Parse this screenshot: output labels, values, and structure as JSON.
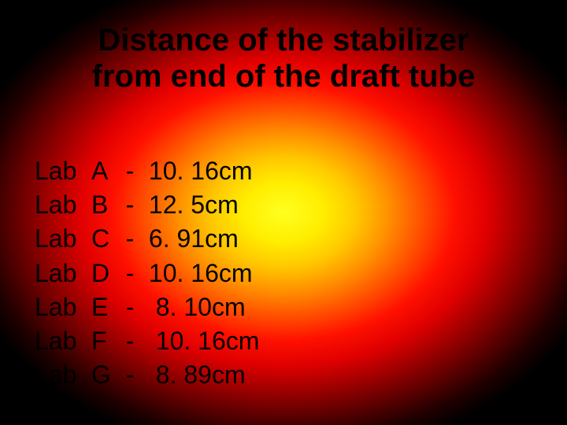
{
  "background": {
    "type": "radial-gradient",
    "center_color": "#ffff20",
    "mid_colors": [
      "#ffee00",
      "#ffc800",
      "#ff9000",
      "#ff5000",
      "#ff1000",
      "#e00000",
      "#a00000",
      "#600000",
      "#200000"
    ],
    "edge_color": "#000000"
  },
  "text_color": "#000000",
  "font_family": "Arial",
  "title": {
    "line1": "Distance of the stabilizer",
    "line2": "from end of the draft tube",
    "fontsize_pt": 30,
    "weight": "bold"
  },
  "list": {
    "fontsize_pt": 24,
    "label_prefix": "Lab",
    "separator": "-",
    "rows": [
      {
        "letter": "A",
        "value": "10. 16cm"
      },
      {
        "letter": "B",
        "value": "12. 5cm"
      },
      {
        "letter": "C",
        "value": "6. 91cm"
      },
      {
        "letter": "D",
        "value": "10. 16cm"
      },
      {
        "letter": "E",
        "value": " 8. 10cm"
      },
      {
        "letter": "F",
        "value": " 10. 16cm"
      },
      {
        "letter": "G",
        "value": " 8. 89cm"
      }
    ]
  }
}
